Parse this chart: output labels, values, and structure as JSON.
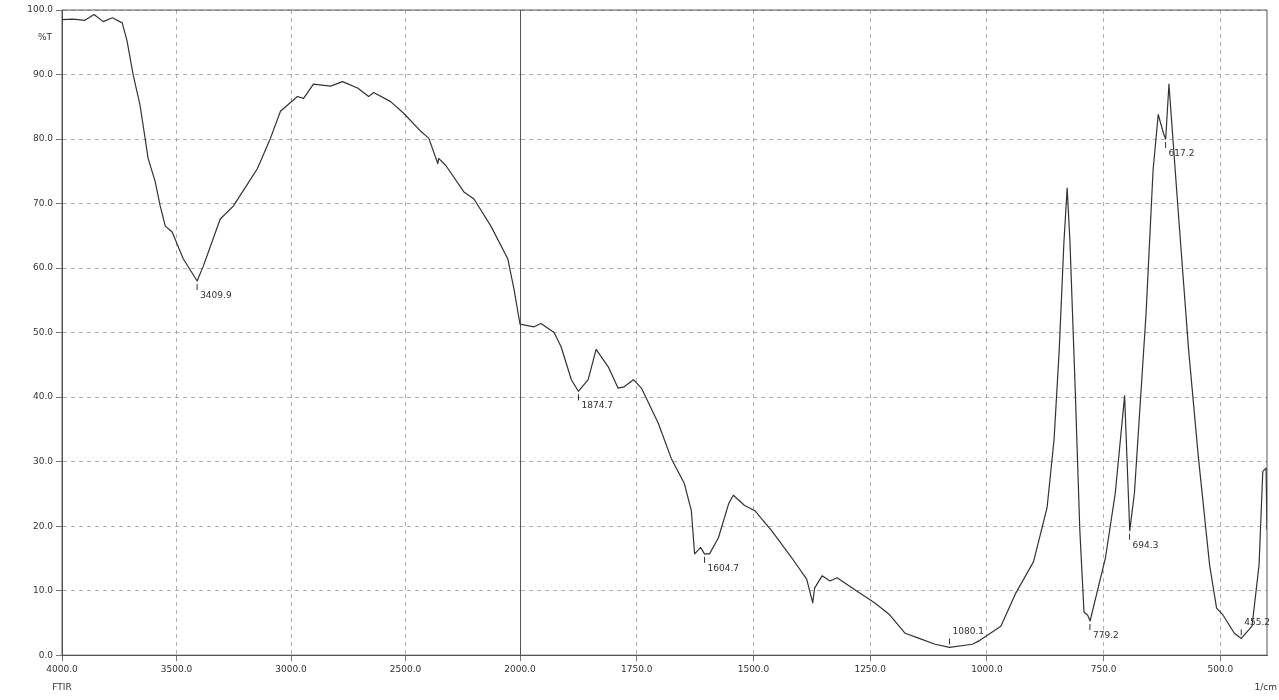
{
  "chart_data": [
    {
      "type": "line",
      "ylabel": "%T",
      "xlim": [
        4000,
        2000
      ],
      "xticks": [
        {
          "value": 4000,
          "label": "4000.0"
        },
        {
          "value": 3500,
          "label": "3500.0"
        },
        {
          "value": 3000,
          "label": "3000.0"
        },
        {
          "value": 2500,
          "label": "2500.0"
        },
        {
          "value": 2000,
          "label": "2000.0"
        }
      ],
      "ylim": [
        0,
        100
      ],
      "yticks": [
        {
          "value": 0,
          "label": "0.0"
        },
        {
          "value": 10,
          "label": "10.0"
        },
        {
          "value": 20,
          "label": "20.0"
        },
        {
          "value": 30,
          "label": "30.0"
        },
        {
          "value": 40,
          "label": "40.0"
        },
        {
          "value": 50,
          "label": "50.0"
        },
        {
          "value": 60,
          "label": "60.0"
        },
        {
          "value": 70,
          "label": "70.0"
        },
        {
          "value": 80,
          "label": "80.0"
        },
        {
          "value": 90,
          "label": "90.0"
        },
        {
          "value": 100,
          "label": "100.0"
        }
      ],
      "grid": true,
      "legend": false,
      "marker": "none",
      "line_style": "solid",
      "series": [
        {
          "color": "#333333",
          "x": [
            4000,
            3950,
            3900,
            3860,
            3820,
            3780,
            3737,
            3716,
            3689,
            3659,
            3637,
            3624,
            3593,
            3571,
            3549,
            3519,
            3470,
            3410,
            3383,
            3309,
            3252,
            3147,
            3090,
            3046,
            2972,
            2945,
            2902,
            2827,
            2775,
            2709,
            2661,
            2639,
            2565,
            2508,
            2433,
            2398,
            2359,
            2355,
            2324,
            2245,
            2201,
            2127,
            2053,
            2026,
            2000
          ],
          "values": [
            98.5,
            98.6,
            98.4,
            99.3,
            98.2,
            98.8,
            98,
            95.2,
            89.9,
            85.2,
            80.1,
            77,
            73.4,
            69.6,
            66.5,
            65.6,
            61.4,
            58,
            60.3,
            67.6,
            69.6,
            75.4,
            80.1,
            84.3,
            86.6,
            86.3,
            88.5,
            88.2,
            88.9,
            87.9,
            86.6,
            87.2,
            85.8,
            84,
            81.2,
            80.1,
            76.2,
            77,
            75.9,
            71.8,
            70.7,
            66.5,
            61.4,
            56.7,
            51.3
          ]
        }
      ],
      "annotations": [
        {
          "text": "3409.9",
          "x": 3409.9,
          "y": 58
        },
        "FTIR"
      ]
    },
    {
      "type": "line",
      "xlabel": "1/cm",
      "xlim": [
        2000,
        400
      ],
      "xticks": [
        {
          "value": 1750,
          "label": "1750.0"
        },
        {
          "value": 1500,
          "label": "1500.0"
        },
        {
          "value": 1250,
          "label": "1250.0"
        },
        {
          "value": 1000,
          "label": "1000.0"
        },
        {
          "value": 750,
          "label": "750.0"
        },
        {
          "value": 500,
          "label": "500.0"
        }
      ],
      "ylim": [
        0,
        100
      ],
      "yticks": [
        0,
        10,
        20,
        30,
        40,
        50,
        60,
        70,
        80,
        90,
        100
      ],
      "tick_labels": "x",
      "grid": true,
      "legend": false,
      "marker": "none",
      "line_style": "solid",
      "series": [
        {
          "color": "#333333",
          "x": [
            2000,
            1970,
            1955,
            1927,
            1912,
            1890,
            1875,
            1854,
            1837,
            1811,
            1790,
            1777,
            1757,
            1740,
            1704,
            1676,
            1648,
            1633,
            1626,
            1613,
            1605,
            1594,
            1575,
            1553,
            1543,
            1519,
            1497,
            1461,
            1418,
            1386,
            1373,
            1369,
            1353,
            1336,
            1321,
            1274,
            1240,
            1210,
            1175,
            1145,
            1111,
            1080,
            1031,
            1015,
            970,
            939,
            900,
            871,
            856,
            845,
            835,
            828,
            822,
            811,
            801,
            792,
            784,
            779,
            746,
            725,
            705,
            694,
            684,
            659,
            644,
            633,
            621,
            617,
            610,
            591,
            568,
            547,
            523,
            508,
            494,
            470,
            455,
            432,
            417,
            409,
            402,
            400
          ],
          "values": [
            51.3,
            50.9,
            51.4,
            50,
            47.8,
            42.7,
            40.9,
            42.7,
            47.4,
            44.7,
            41.4,
            41.6,
            42.7,
            41.4,
            36,
            30.5,
            26.6,
            22.4,
            15.7,
            16.7,
            15.7,
            15.7,
            18.2,
            23.5,
            24.8,
            23.2,
            22.4,
            19.3,
            15.1,
            11.8,
            8.1,
            10.4,
            12.3,
            11.5,
            12,
            9.7,
            8.1,
            6.4,
            3.4,
            2.6,
            1.7,
            1.2,
            1.7,
            2.3,
            4.5,
            9.5,
            14.5,
            22.9,
            33.5,
            47.4,
            64,
            72.4,
            64,
            41.7,
            19.5,
            6.7,
            6.2,
            5.3,
            15.1,
            25.1,
            40.2,
            19.3,
            25.1,
            53,
            75.2,
            83.8,
            80.7,
            80,
            88.5,
            69.6,
            47.4,
            30.7,
            14,
            7.3,
            6.2,
            3.4,
            2.6,
            4.5,
            14,
            28.5,
            29,
            19.5
          ]
        }
      ],
      "annotations": [
        {
          "text": "1874.7",
          "x": 1874.7,
          "y": 40.9
        },
        {
          "text": "1604.7",
          "x": 1604.7,
          "y": 15.7
        },
        {
          "text": "1080.1",
          "x": 1080.1,
          "y": 1.2
        },
        {
          "text": "779.2",
          "x": 779.2,
          "y": 5.3
        },
        {
          "text": "694.3",
          "x": 694.3,
          "y": 19.3
        },
        {
          "text": "617.2",
          "x": 617.2,
          "y": 80
        },
        {
          "text": "455.2",
          "x": 455.2,
          "y": 2.6
        }
      ]
    }
  ]
}
